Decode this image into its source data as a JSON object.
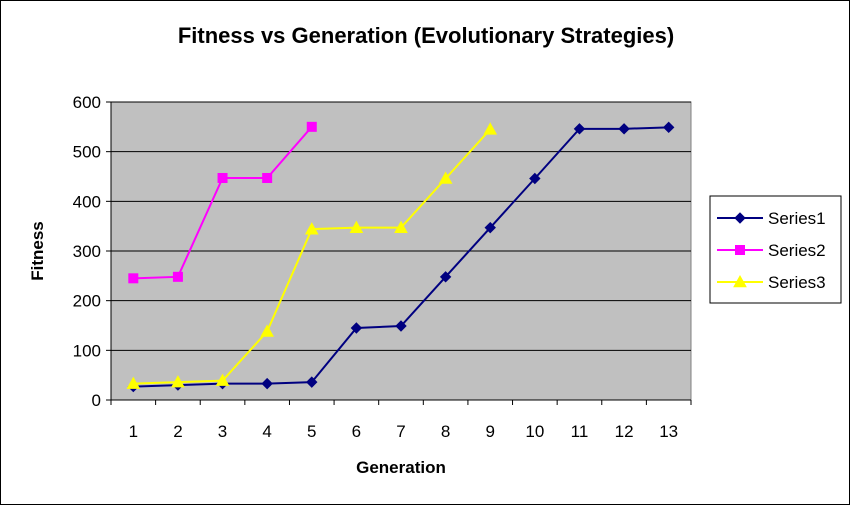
{
  "chart_data": {
    "type": "line",
    "title": "Fitness vs Generation (Evolutionary Strategies)",
    "xlabel": "Generation",
    "ylabel": "Fitness",
    "x": [
      1,
      2,
      3,
      4,
      5,
      6,
      7,
      8,
      9,
      10,
      11,
      12,
      13
    ],
    "ylim": [
      0,
      600
    ],
    "yticks": [
      0,
      100,
      200,
      300,
      400,
      500,
      600
    ],
    "grid": "horizontal",
    "plot_background": "#C0C0C0",
    "legend_position": "right",
    "series": [
      {
        "name": "Series1",
        "color": "#000080",
        "marker": "diamond",
        "values": [
          27,
          30,
          33,
          33,
          36,
          145,
          149,
          248,
          347,
          446,
          546,
          546,
          549
        ]
      },
      {
        "name": "Series2",
        "color": "#FF00FF",
        "marker": "square",
        "values": [
          245,
          248,
          447,
          447,
          550,
          null,
          null,
          null,
          null,
          null,
          null,
          null,
          null
        ]
      },
      {
        "name": "Series3",
        "color": "#FFFF00",
        "marker": "triangle",
        "values": [
          33,
          36,
          39,
          138,
          344,
          347,
          347,
          446,
          545,
          null,
          null,
          null,
          null
        ]
      }
    ]
  }
}
